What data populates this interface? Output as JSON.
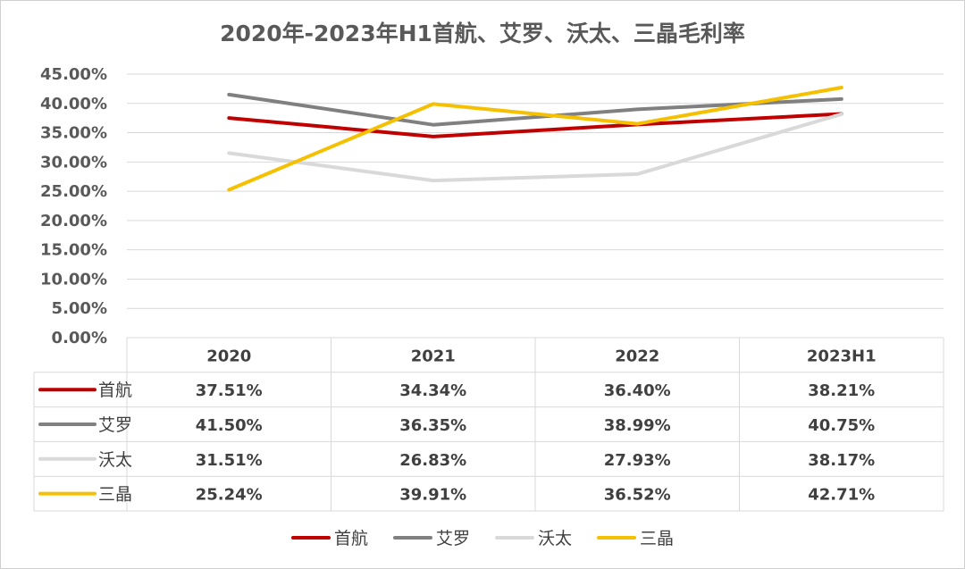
{
  "chart_data": {
    "type": "line",
    "title": "2020年-2023年H1首航、艾罗、沃太、三晶毛利率",
    "categories": [
      "2020",
      "2021",
      "2022",
      "2023H1"
    ],
    "ylim": [
      0,
      45
    ],
    "yticks": [
      "0.00%",
      "5.00%",
      "10.00%",
      "15.00%",
      "20.00%",
      "25.00%",
      "30.00%",
      "35.00%",
      "40.00%",
      "45.00%"
    ],
    "grid": true,
    "legend_position": "bottom",
    "data_table": true,
    "series": [
      {
        "name": "首航",
        "color": "#C00000",
        "values": [
          37.51,
          34.34,
          36.4,
          38.21
        ],
        "labels": [
          "37.51%",
          "34.34%",
          "36.40%",
          "38.21%"
        ]
      },
      {
        "name": "艾罗",
        "color": "#808080",
        "values": [
          41.5,
          36.35,
          38.99,
          40.75
        ],
        "labels": [
          "41.50%",
          "36.35%",
          "38.99%",
          "40.75%"
        ]
      },
      {
        "name": "沃太",
        "color": "#D9D9D9",
        "values": [
          31.51,
          26.83,
          27.93,
          38.17
        ],
        "labels": [
          "31.51%",
          "26.83%",
          "27.93%",
          "38.17%"
        ]
      },
      {
        "name": "三晶",
        "color": "#F5C000",
        "values": [
          25.24,
          39.91,
          36.52,
          42.71
        ],
        "labels": [
          "25.24%",
          "39.91%",
          "36.52%",
          "42.71%"
        ]
      }
    ]
  }
}
